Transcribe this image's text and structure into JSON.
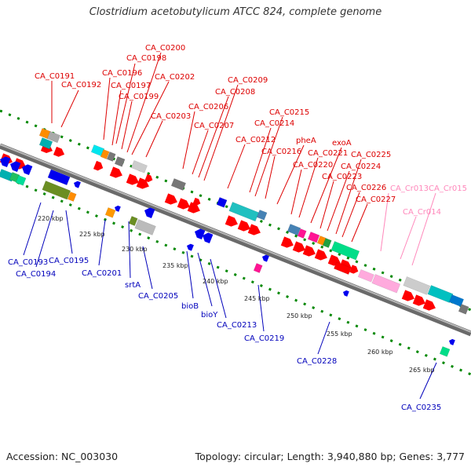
{
  "title": "Clostridium acetobutylicum ATCC 824, complete genome",
  "footer": {
    "accession": "Accession: NC_003030",
    "summary": "Topology: circular; Length: 3,940,880 bp; Genes: 3,777"
  },
  "colors": {
    "forward_cds": "#ff0000",
    "reverse_cds": "#0000ee",
    "forward_label": "#dd0000",
    "reverse_label": "#0000bb",
    "rna_label": "#ff88bb",
    "backbone": "#808080",
    "track_dots": "#008800"
  },
  "scale_labels": [
    "220 kbp",
    "225 kbp",
    "230 kbp",
    "235 kbp",
    "240 kbp",
    "245 kbp",
    "250 kbp",
    "255 kbp",
    "260 kbp",
    "265 kbp"
  ],
  "top_labels": [
    "CA_C0191",
    "CA_C0192",
    "CA_C0196",
    "CA_C0197",
    "CA_C0198",
    "CA_C0199",
    "CA_C0200",
    "CA_C0202",
    "CA_C0203",
    "CA_C0206",
    "CA_C0207",
    "CA_C0208",
    "CA_C0209",
    "CA_C0212",
    "CA_C0214",
    "CA_C0215",
    "CA_C0216",
    "pheA",
    "CA_C0220",
    "CA_C0221",
    "exoA",
    "CA_C0223",
    "CA_C0224",
    "CA_C0225",
    "CA_C0226",
    "CA_C0227"
  ],
  "rna_labels": [
    "CA_Cr013",
    "CA_Cr014",
    "CA_Cr015"
  ],
  "bottom_labels": [
    "CA_C0193",
    "CA_C0194",
    "CA_C0195",
    "CA_C0201",
    "srtA",
    "CA_C0205",
    "bioB",
    "bioY",
    "CA_C0213",
    "CA_C0219",
    "CA_C0228",
    "CA_C0235"
  ]
}
